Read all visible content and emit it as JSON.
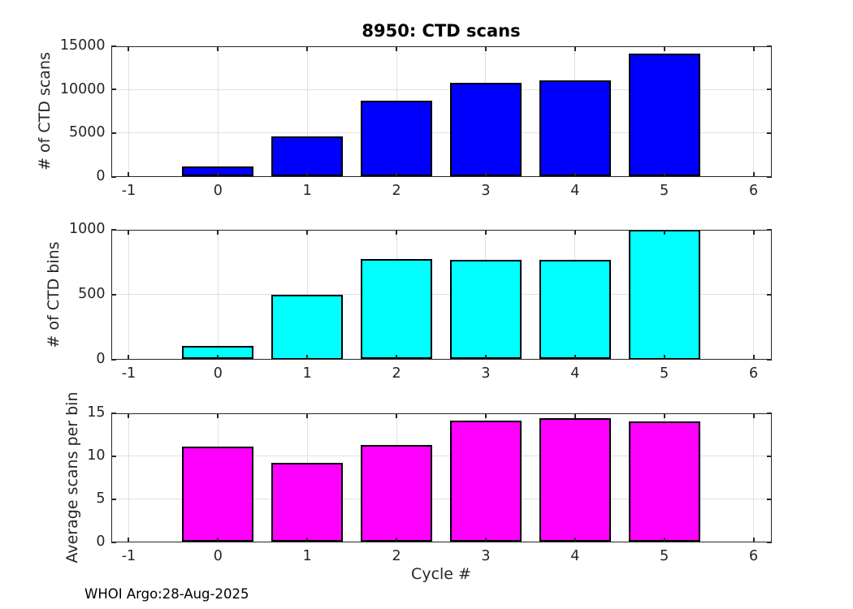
{
  "figure": {
    "footer": "WHOI Argo:28-Aug-2025",
    "background_color": "#FFFFFF",
    "axis_color": "#262626",
    "grid_color": "#E0E0E0",
    "bar_edge_color": "#000000"
  },
  "chart_data": [
    {
      "type": "bar",
      "title": "8950: CTD scans",
      "ylabel": "# of CTD scans",
      "categories": [
        0,
        1,
        2,
        3,
        4,
        5
      ],
      "values": [
        1150,
        4600,
        8700,
        10750,
        11000,
        14100
      ],
      "bar_color": "#0000FF",
      "edge_color": "#000000",
      "xlim": [
        -1.2,
        6.2
      ],
      "ylim": [
        0,
        15000
      ],
      "xticks": [
        -1,
        0,
        1,
        2,
        3,
        4,
        5,
        6
      ],
      "yticks": [
        0,
        5000,
        10000,
        15000
      ],
      "bar_width": 0.8,
      "grid": true,
      "legend": "none"
    },
    {
      "type": "bar",
      "title": "",
      "ylabel": "# of CTD bins",
      "categories": [
        0,
        1,
        2,
        3,
        4,
        5
      ],
      "values": [
        104,
        500,
        770,
        765,
        765,
        1000
      ],
      "bar_color": "#00FFFF",
      "edge_color": "#000000",
      "xlim": [
        -1.2,
        6.2
      ],
      "ylim": [
        0,
        1000
      ],
      "xticks": [
        -1,
        0,
        1,
        2,
        3,
        4,
        5,
        6
      ],
      "yticks": [
        0,
        500,
        1000
      ],
      "bar_width": 0.8,
      "grid": true,
      "legend": "none"
    },
    {
      "type": "bar",
      "title": "",
      "ylabel": "Average scans per bin",
      "xlabel": "Cycle #",
      "categories": [
        0,
        1,
        2,
        3,
        4,
        5
      ],
      "values": [
        11.1,
        9.2,
        11.3,
        14.1,
        14.4,
        14.0
      ],
      "bar_color": "#FF00FF",
      "edge_color": "#000000",
      "xlim": [
        -1.2,
        6.2
      ],
      "ylim": [
        0,
        15
      ],
      "xticks": [
        -1,
        0,
        1,
        2,
        3,
        4,
        5,
        6
      ],
      "yticks": [
        0,
        5,
        10,
        15
      ],
      "bar_width": 0.8,
      "grid": true,
      "legend": "none"
    }
  ]
}
